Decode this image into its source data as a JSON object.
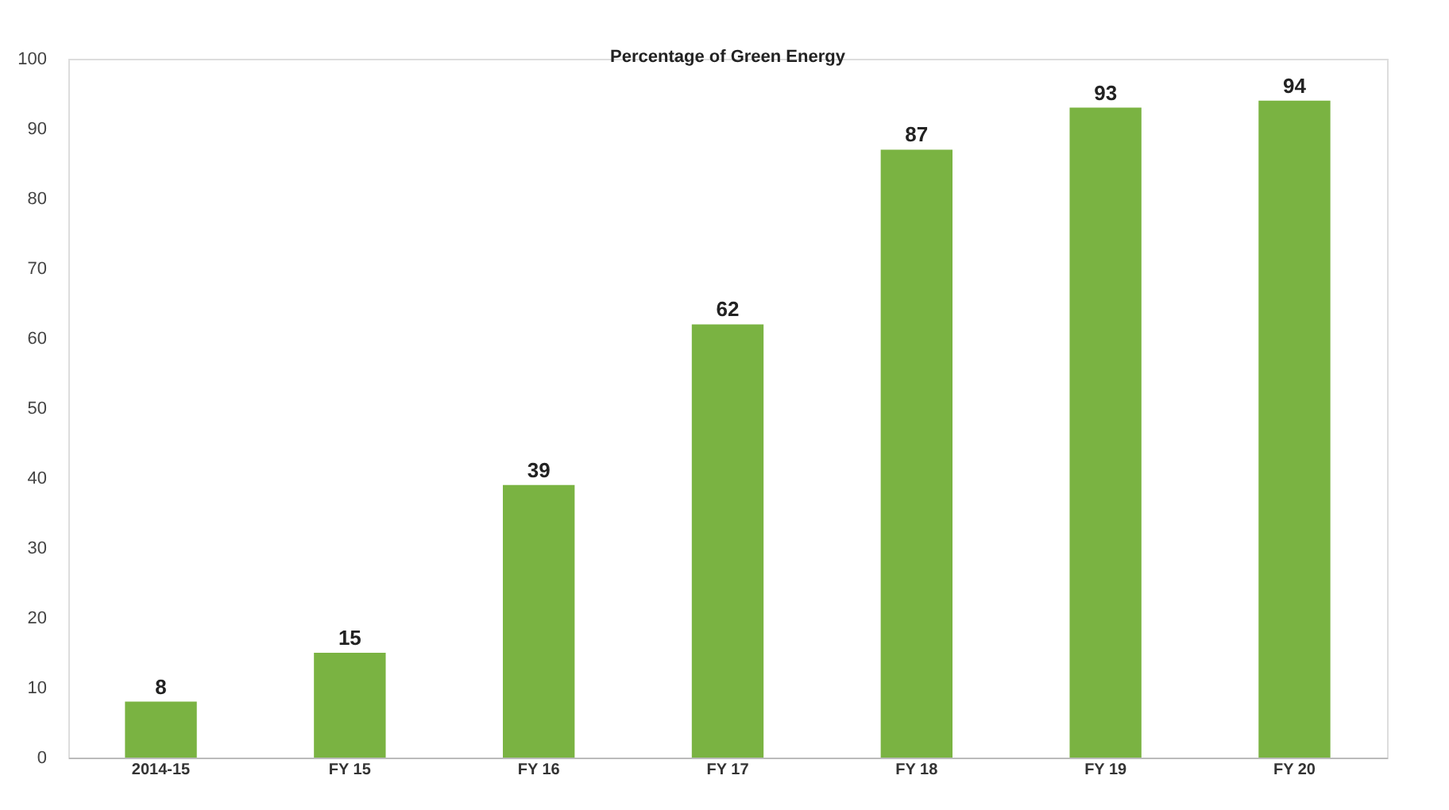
{
  "chart_data": {
    "type": "bar",
    "title": "Percentage of Green Energy",
    "categories": [
      "2014-15",
      "FY 15",
      "FY 16",
      "FY 17",
      "FY 18",
      "FY 19",
      "FY 20"
    ],
    "values": [
      8,
      15,
      39,
      62,
      87,
      93,
      94
    ],
    "color": "#7ab342",
    "ylim": [
      0,
      100
    ],
    "yticks": [
      0,
      10,
      20,
      30,
      40,
      50,
      60,
      70,
      80,
      90,
      100
    ],
    "grid": false,
    "data_labels": true
  }
}
